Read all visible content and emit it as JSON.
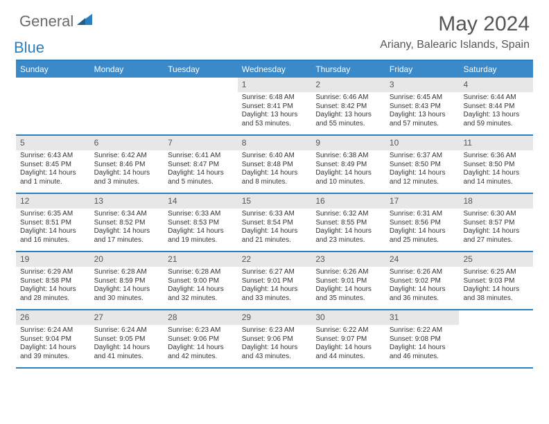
{
  "logo": {
    "text1": "General",
    "text2": "Blue"
  },
  "title": "May 2024",
  "location": "Ariany, Balearic Islands, Spain",
  "colors": {
    "header_bar": "#3a8ac9",
    "rule": "#2a7fbf",
    "daynum_bg": "#e7e7e7",
    "text": "#333333",
    "title_text": "#555555",
    "logo_gray": "#6b6b6b",
    "logo_blue": "#2a7fbf",
    "bg": "#ffffff"
  },
  "day_headers": [
    "Sunday",
    "Monday",
    "Tuesday",
    "Wednesday",
    "Thursday",
    "Friday",
    "Saturday"
  ],
  "weeks": [
    [
      {
        "n": "",
        "sr": "",
        "ss": "",
        "dl": ""
      },
      {
        "n": "",
        "sr": "",
        "ss": "",
        "dl": ""
      },
      {
        "n": "",
        "sr": "",
        "ss": "",
        "dl": ""
      },
      {
        "n": "1",
        "sr": "Sunrise: 6:48 AM",
        "ss": "Sunset: 8:41 PM",
        "dl": "Daylight: 13 hours and 53 minutes."
      },
      {
        "n": "2",
        "sr": "Sunrise: 6:46 AM",
        "ss": "Sunset: 8:42 PM",
        "dl": "Daylight: 13 hours and 55 minutes."
      },
      {
        "n": "3",
        "sr": "Sunrise: 6:45 AM",
        "ss": "Sunset: 8:43 PM",
        "dl": "Daylight: 13 hours and 57 minutes."
      },
      {
        "n": "4",
        "sr": "Sunrise: 6:44 AM",
        "ss": "Sunset: 8:44 PM",
        "dl": "Daylight: 13 hours and 59 minutes."
      }
    ],
    [
      {
        "n": "5",
        "sr": "Sunrise: 6:43 AM",
        "ss": "Sunset: 8:45 PM",
        "dl": "Daylight: 14 hours and 1 minute."
      },
      {
        "n": "6",
        "sr": "Sunrise: 6:42 AM",
        "ss": "Sunset: 8:46 PM",
        "dl": "Daylight: 14 hours and 3 minutes."
      },
      {
        "n": "7",
        "sr": "Sunrise: 6:41 AM",
        "ss": "Sunset: 8:47 PM",
        "dl": "Daylight: 14 hours and 5 minutes."
      },
      {
        "n": "8",
        "sr": "Sunrise: 6:40 AM",
        "ss": "Sunset: 8:48 PM",
        "dl": "Daylight: 14 hours and 8 minutes."
      },
      {
        "n": "9",
        "sr": "Sunrise: 6:38 AM",
        "ss": "Sunset: 8:49 PM",
        "dl": "Daylight: 14 hours and 10 minutes."
      },
      {
        "n": "10",
        "sr": "Sunrise: 6:37 AM",
        "ss": "Sunset: 8:50 PM",
        "dl": "Daylight: 14 hours and 12 minutes."
      },
      {
        "n": "11",
        "sr": "Sunrise: 6:36 AM",
        "ss": "Sunset: 8:50 PM",
        "dl": "Daylight: 14 hours and 14 minutes."
      }
    ],
    [
      {
        "n": "12",
        "sr": "Sunrise: 6:35 AM",
        "ss": "Sunset: 8:51 PM",
        "dl": "Daylight: 14 hours and 16 minutes."
      },
      {
        "n": "13",
        "sr": "Sunrise: 6:34 AM",
        "ss": "Sunset: 8:52 PM",
        "dl": "Daylight: 14 hours and 17 minutes."
      },
      {
        "n": "14",
        "sr": "Sunrise: 6:33 AM",
        "ss": "Sunset: 8:53 PM",
        "dl": "Daylight: 14 hours and 19 minutes."
      },
      {
        "n": "15",
        "sr": "Sunrise: 6:33 AM",
        "ss": "Sunset: 8:54 PM",
        "dl": "Daylight: 14 hours and 21 minutes."
      },
      {
        "n": "16",
        "sr": "Sunrise: 6:32 AM",
        "ss": "Sunset: 8:55 PM",
        "dl": "Daylight: 14 hours and 23 minutes."
      },
      {
        "n": "17",
        "sr": "Sunrise: 6:31 AM",
        "ss": "Sunset: 8:56 PM",
        "dl": "Daylight: 14 hours and 25 minutes."
      },
      {
        "n": "18",
        "sr": "Sunrise: 6:30 AM",
        "ss": "Sunset: 8:57 PM",
        "dl": "Daylight: 14 hours and 27 minutes."
      }
    ],
    [
      {
        "n": "19",
        "sr": "Sunrise: 6:29 AM",
        "ss": "Sunset: 8:58 PM",
        "dl": "Daylight: 14 hours and 28 minutes."
      },
      {
        "n": "20",
        "sr": "Sunrise: 6:28 AM",
        "ss": "Sunset: 8:59 PM",
        "dl": "Daylight: 14 hours and 30 minutes."
      },
      {
        "n": "21",
        "sr": "Sunrise: 6:28 AM",
        "ss": "Sunset: 9:00 PM",
        "dl": "Daylight: 14 hours and 32 minutes."
      },
      {
        "n": "22",
        "sr": "Sunrise: 6:27 AM",
        "ss": "Sunset: 9:01 PM",
        "dl": "Daylight: 14 hours and 33 minutes."
      },
      {
        "n": "23",
        "sr": "Sunrise: 6:26 AM",
        "ss": "Sunset: 9:01 PM",
        "dl": "Daylight: 14 hours and 35 minutes."
      },
      {
        "n": "24",
        "sr": "Sunrise: 6:26 AM",
        "ss": "Sunset: 9:02 PM",
        "dl": "Daylight: 14 hours and 36 minutes."
      },
      {
        "n": "25",
        "sr": "Sunrise: 6:25 AM",
        "ss": "Sunset: 9:03 PM",
        "dl": "Daylight: 14 hours and 38 minutes."
      }
    ],
    [
      {
        "n": "26",
        "sr": "Sunrise: 6:24 AM",
        "ss": "Sunset: 9:04 PM",
        "dl": "Daylight: 14 hours and 39 minutes."
      },
      {
        "n": "27",
        "sr": "Sunrise: 6:24 AM",
        "ss": "Sunset: 9:05 PM",
        "dl": "Daylight: 14 hours and 41 minutes."
      },
      {
        "n": "28",
        "sr": "Sunrise: 6:23 AM",
        "ss": "Sunset: 9:06 PM",
        "dl": "Daylight: 14 hours and 42 minutes."
      },
      {
        "n": "29",
        "sr": "Sunrise: 6:23 AM",
        "ss": "Sunset: 9:06 PM",
        "dl": "Daylight: 14 hours and 43 minutes."
      },
      {
        "n": "30",
        "sr": "Sunrise: 6:22 AM",
        "ss": "Sunset: 9:07 PM",
        "dl": "Daylight: 14 hours and 44 minutes."
      },
      {
        "n": "31",
        "sr": "Sunrise: 6:22 AM",
        "ss": "Sunset: 9:08 PM",
        "dl": "Daylight: 14 hours and 46 minutes."
      },
      {
        "n": "",
        "sr": "",
        "ss": "",
        "dl": ""
      }
    ]
  ]
}
